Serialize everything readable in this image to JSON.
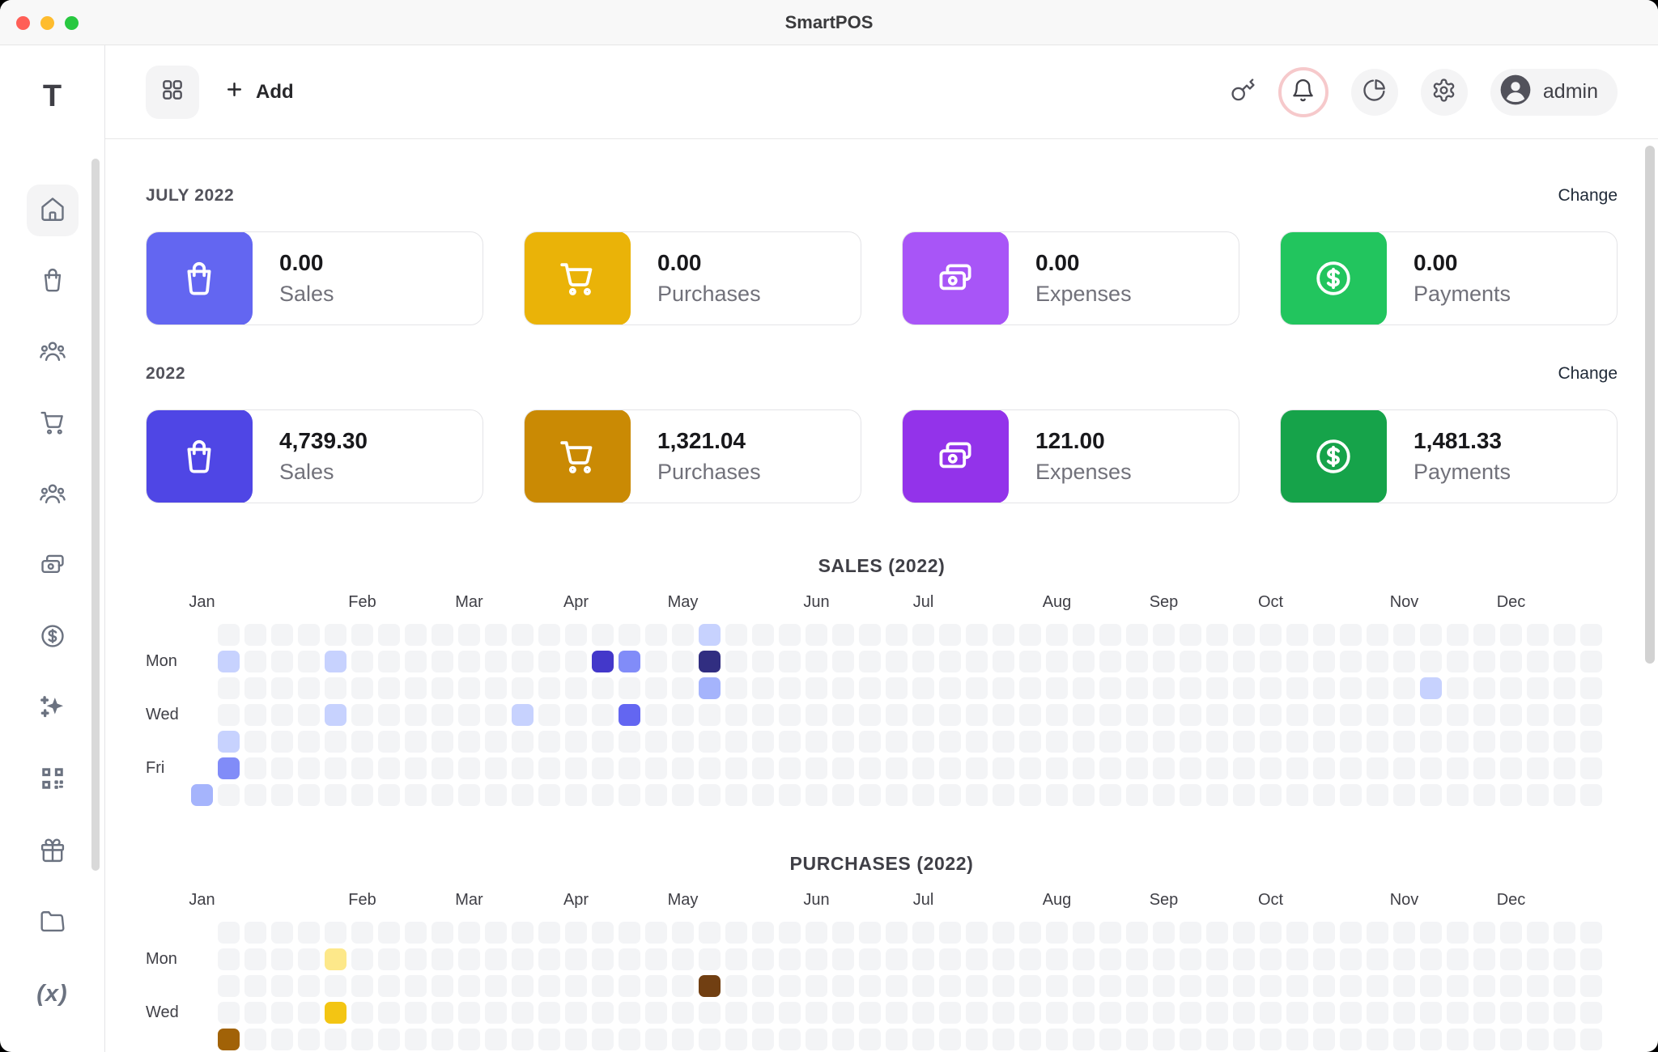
{
  "window": {
    "title": "SmartPOS"
  },
  "titlebar": {
    "buttons": [
      "close",
      "minimize",
      "zoom"
    ]
  },
  "sidebar": {
    "logo": "T",
    "items": [
      {
        "icon": "home-icon",
        "selected": true
      },
      {
        "icon": "shopping-bag-icon",
        "selected": false
      },
      {
        "icon": "users-icon",
        "selected": false
      },
      {
        "icon": "shopping-cart-icon",
        "selected": false
      },
      {
        "icon": "users-icon",
        "selected": false
      },
      {
        "icon": "cash-stack-icon",
        "selected": false
      },
      {
        "icon": "dollar-coin-icon",
        "selected": false
      },
      {
        "icon": "sparkles-icon",
        "selected": false
      },
      {
        "icon": "qr-code-icon",
        "selected": false
      },
      {
        "icon": "gift-icon",
        "selected": false
      },
      {
        "icon": "folder-icon",
        "selected": false
      },
      {
        "icon": "function-x-icon",
        "selected": false,
        "glyph": "(x)"
      },
      {
        "icon": "partial-icon",
        "selected": false
      }
    ]
  },
  "toolbar": {
    "add_label": "Add",
    "right_buttons": [
      {
        "icon": "key-icon",
        "style": "plain"
      },
      {
        "icon": "bell-icon",
        "style": "ring",
        "ring_color": "#f6c9cb"
      },
      {
        "icon": "pie-chart-icon",
        "style": "circle"
      },
      {
        "icon": "gear-icon",
        "style": "circle"
      }
    ],
    "user": {
      "label": "admin"
    }
  },
  "sections": [
    {
      "heading": "JULY 2022",
      "change_label": "Change",
      "cards": [
        {
          "label": "Sales",
          "value": "0.00",
          "color": "#6366f1",
          "icon": "bag-icon"
        },
        {
          "label": "Purchases",
          "value": "0.00",
          "color": "#eab308",
          "icon": "cart-icon"
        },
        {
          "label": "Expenses",
          "value": "0.00",
          "color": "#a855f7",
          "icon": "cash-icon"
        },
        {
          "label": "Payments",
          "value": "0.00",
          "color": "#22c55e",
          "icon": "dollar-icon"
        }
      ]
    },
    {
      "heading": "2022",
      "change_label": "Change",
      "cards": [
        {
          "label": "Sales",
          "value": "4,739.30",
          "color": "#4f46e5",
          "icon": "bag-icon"
        },
        {
          "label": "Purchases",
          "value": "1,321.04",
          "color": "#ca8a04",
          "icon": "cart-icon"
        },
        {
          "label": "Expenses",
          "value": "121.00",
          "color": "#9333ea",
          "icon": "cash-icon"
        },
        {
          "label": "Payments",
          "value": "1,481.33",
          "color": "#16a34a",
          "icon": "dollar-icon"
        }
      ]
    }
  ],
  "chart_data": [
    {
      "type": "heatmap",
      "title": "SALES (2022)",
      "year": 2022,
      "weeks": 53,
      "day_rows": [
        "Sun",
        "Mon",
        "Tue",
        "Wed",
        "Thu",
        "Fri",
        "Sat"
      ],
      "day_labels_shown": [
        "Mon",
        "Wed",
        "Fri"
      ],
      "months": [
        "Jan",
        "Feb",
        "Mar",
        "Apr",
        "May",
        "Jun",
        "Jul",
        "Aug",
        "Sep",
        "Oct",
        "Nov",
        "Dec"
      ],
      "month_week_index": [
        0,
        6,
        10,
        14,
        18,
        23,
        27,
        32,
        36,
        40,
        45,
        49
      ],
      "first_week_rows": [
        "Sat"
      ],
      "empty_color": "#f3f4f6",
      "cells": [
        {
          "day": "Sat",
          "week": 0,
          "date": "Jan 1",
          "color": "#a5b4fc"
        },
        {
          "day": "Mon",
          "week": 1,
          "date": "Jan 3",
          "color": "#c7d2fe"
        },
        {
          "day": "Thu",
          "week": 1,
          "date": "Jan 6",
          "color": "#c7d2fe"
        },
        {
          "day": "Fri",
          "week": 1,
          "date": "Jan 7",
          "color": "#818cf8"
        },
        {
          "day": "Mon",
          "week": 5,
          "date": "Jan 31",
          "color": "#c7d2fe"
        },
        {
          "day": "Wed",
          "week": 5,
          "date": "Feb 2",
          "color": "#c7d2fe"
        },
        {
          "day": "Wed",
          "week": 12,
          "date": "Mar 23",
          "color": "#c7d2fe"
        },
        {
          "day": "Mon",
          "week": 15,
          "date": "Apr 11",
          "color": "#4338ca"
        },
        {
          "day": "Mon",
          "week": 16,
          "date": "Apr 18",
          "color": "#818cf8"
        },
        {
          "day": "Wed",
          "week": 16,
          "date": "Apr 20",
          "color": "#6366f1"
        },
        {
          "day": "Sun",
          "week": 19,
          "date": "May 8",
          "color": "#c7d2fe"
        },
        {
          "day": "Mon",
          "week": 19,
          "date": "May 9",
          "color": "#312e81"
        },
        {
          "day": "Tue",
          "week": 19,
          "date": "May 10",
          "color": "#a5b4fc"
        },
        {
          "day": "Tue",
          "week": 46,
          "date": "Nov 15",
          "color": "#c7d2fe"
        }
      ]
    },
    {
      "type": "heatmap",
      "title": "PURCHASES (2022)",
      "year": 2022,
      "weeks": 53,
      "day_rows": [
        "Sun",
        "Mon",
        "Tue",
        "Wed",
        "Thu",
        "Fri",
        "Sat"
      ],
      "day_labels_shown": [
        "Mon",
        "Wed"
      ],
      "months": [
        "Jan",
        "Feb",
        "Mar",
        "Apr",
        "May",
        "Jun",
        "Jul",
        "Aug",
        "Sep",
        "Oct",
        "Nov",
        "Dec"
      ],
      "month_week_index": [
        0,
        6,
        10,
        14,
        18,
        23,
        27,
        32,
        36,
        40,
        45,
        49
      ],
      "first_week_rows": [
        "Sat"
      ],
      "empty_color": "#f3f4f6",
      "cells": [
        {
          "day": "Thu",
          "week": 1,
          "date": "Jan 6",
          "color": "#a16207"
        },
        {
          "day": "Mon",
          "week": 5,
          "date": "Jan 31",
          "color": "#fde88a"
        },
        {
          "day": "Wed",
          "week": 5,
          "date": "Feb 2",
          "color": "#f3c513"
        },
        {
          "day": "Tue",
          "week": 19,
          "date": "May 10",
          "color": "#713f12"
        }
      ]
    }
  ]
}
